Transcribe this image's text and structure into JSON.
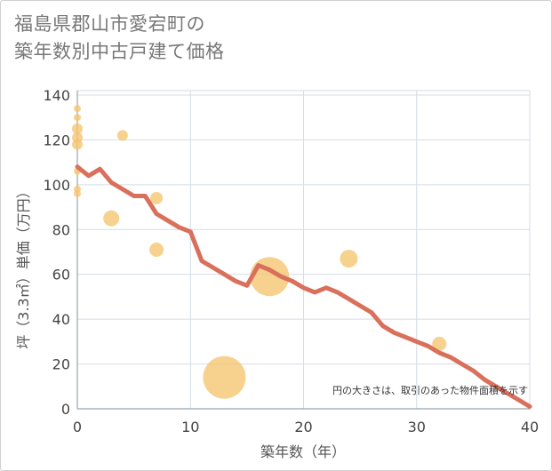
{
  "chart_data": {
    "type": "scatter",
    "title_line1": "福島県郡山市愛宕町の",
    "title_line2": "築年数別中古戸建て価格",
    "xlabel": "築年数（年）",
    "ylabel": "坪（3.3㎡）単価（万円）",
    "note": "円の大きさは、取引のあった物件面積を示す",
    "xlim": [
      0,
      40
    ],
    "ylim": [
      0,
      140
    ],
    "xticks": [
      0,
      10,
      20,
      30,
      40
    ],
    "yticks": [
      0,
      20,
      40,
      60,
      80,
      100,
      120,
      140
    ],
    "grid": true,
    "scatter": [
      {
        "x": 0,
        "y": 134,
        "size": 4
      },
      {
        "x": 0,
        "y": 130,
        "size": 4
      },
      {
        "x": 0,
        "y": 125,
        "size": 6
      },
      {
        "x": 0,
        "y": 121,
        "size": 6
      },
      {
        "x": 0,
        "y": 118,
        "size": 6
      },
      {
        "x": 0,
        "y": 106,
        "size": 4
      },
      {
        "x": 0,
        "y": 98,
        "size": 4
      },
      {
        "x": 0,
        "y": 96,
        "size": 4
      },
      {
        "x": 4,
        "y": 122,
        "size": 6
      },
      {
        "x": 3,
        "y": 85,
        "size": 9
      },
      {
        "x": 7,
        "y": 94,
        "size": 7
      },
      {
        "x": 7,
        "y": 71,
        "size": 8
      },
      {
        "x": 13,
        "y": 14,
        "size": 24
      },
      {
        "x": 17,
        "y": 59,
        "size": 22
      },
      {
        "x": 24,
        "y": 67,
        "size": 10
      },
      {
        "x": 32,
        "y": 29,
        "size": 8
      }
    ],
    "trend": {
      "name": "average",
      "x": [
        0,
        1,
        2,
        3,
        4,
        5,
        6,
        7,
        8,
        9,
        10,
        11,
        12,
        13,
        14,
        15,
        16,
        17,
        18,
        19,
        20,
        21,
        22,
        23,
        24,
        25,
        26,
        27,
        28,
        29,
        30,
        31,
        32,
        33,
        34,
        35,
        36,
        37,
        38,
        39,
        40
      ],
      "y": [
        108,
        104,
        107,
        101,
        98,
        95,
        95,
        87,
        84,
        81,
        79,
        66,
        63,
        60,
        57,
        55,
        64,
        62,
        59,
        57,
        54,
        52,
        54,
        52,
        49,
        46,
        43,
        37,
        34,
        32,
        30,
        28,
        25,
        23,
        20,
        17,
        13,
        10,
        7,
        4,
        1
      ]
    },
    "colors": {
      "bubble": "#f5c46e",
      "trend": "#d9705b",
      "grid": "#d4dce6",
      "axis": "#9aa4ae"
    }
  }
}
